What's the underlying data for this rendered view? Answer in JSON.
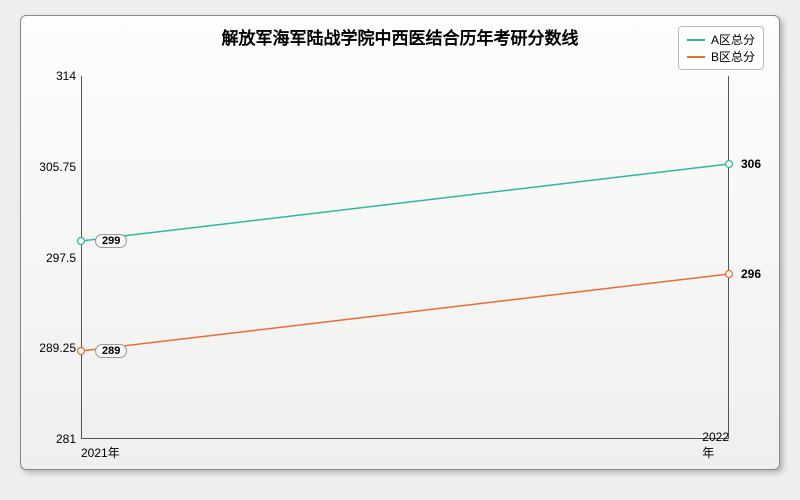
{
  "chart": {
    "type": "line",
    "title": "解放军海军陆战学院中西医结合历年考研分数线",
    "title_fontsize": 17,
    "background_gradient_top": "#fdfdfc",
    "background_gradient_bottom": "#efefee",
    "page_bg": "#eeefed",
    "x_categories": [
      "2021年",
      "2022年"
    ],
    "ylim": [
      281,
      314
    ],
    "yticks": [
      281,
      289.25,
      297.5,
      305.75,
      314
    ],
    "ytick_labels": [
      "281",
      "289.25",
      "297.5",
      "305.75",
      "314"
    ],
    "series": [
      {
        "name": "A区总分",
        "color": "#2fb89a",
        "values": [
          299,
          306
        ],
        "marker_fill": "#f5f5f3"
      },
      {
        "name": "B区总分",
        "color": "#e86c3a",
        "values": [
          289,
          296
        ],
        "marker_fill": "#f5f5f3"
      }
    ],
    "line_width": 1.5,
    "marker_radius": 3.5,
    "label_fontsize": 12
  }
}
